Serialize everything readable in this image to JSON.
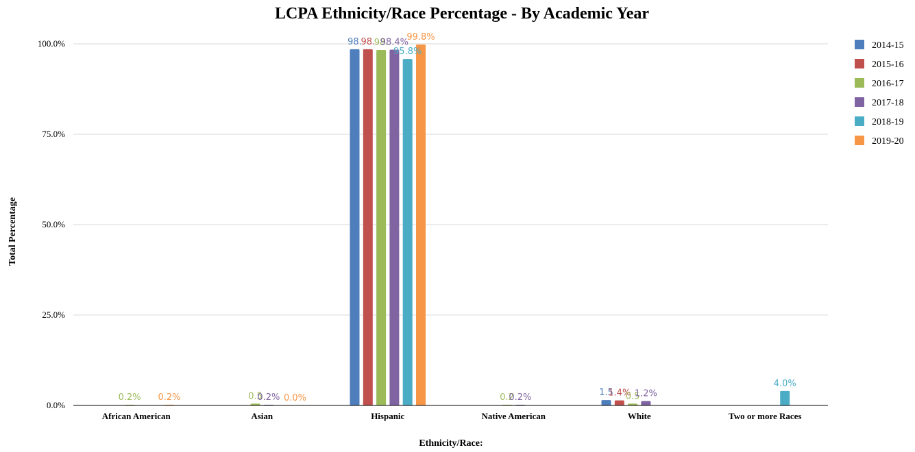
{
  "chart_data": {
    "type": "bar",
    "title": "LCPA Ethnicity/Race Percentage - By Academic Year",
    "xlabel": "Ethnicity/Race:",
    "ylabel": "Total Percentage",
    "ylim": [
      0,
      100
    ],
    "yticks": [
      "0.0%",
      "25.0%",
      "50.0%",
      "75.0%",
      "100.0%"
    ],
    "ytick_values": [
      0,
      25,
      50,
      75,
      100
    ],
    "grid": true,
    "legend_position": "right",
    "categories": [
      "African American",
      "Asian",
      "Hispanic",
      "Native American",
      "White",
      "Two or more Races"
    ],
    "series": [
      {
        "name": "2014-15",
        "color": "#4e7ebc",
        "values": [
          null,
          null,
          98.5,
          null,
          1.5,
          null
        ],
        "labels": [
          "",
          "",
          "98.",
          "",
          "1.5",
          ""
        ]
      },
      {
        "name": "2015-16",
        "color": "#c0504d",
        "values": [
          null,
          null,
          98.5,
          null,
          1.4,
          null
        ],
        "labels": [
          "",
          "",
          "98.",
          "",
          "1.4%",
          ""
        ]
      },
      {
        "name": "2016-17",
        "color": "#9bbb59",
        "values": [
          0.2,
          0.5,
          98.3,
          0.2,
          0.5,
          null
        ],
        "labels": [
          "0.2%",
          "0.5",
          "98.",
          "0.2",
          "0.5",
          ""
        ]
      },
      {
        "name": "2017-18",
        "color": "#8064a2",
        "values": [
          null,
          0.2,
          98.4,
          0.2,
          1.2,
          null
        ],
        "labels": [
          "",
          "0.2%",
          "98.4%",
          "0.2%",
          "1.2%",
          ""
        ]
      },
      {
        "name": "2018-19",
        "color": "#4bacc6",
        "values": [
          null,
          null,
          95.8,
          null,
          null,
          4.0
        ],
        "labels": [
          "",
          "",
          "95.8%",
          "",
          "",
          "4.0%"
        ]
      },
      {
        "name": "2019-20",
        "color": "#f79646",
        "values": [
          0.2,
          0.0,
          99.8,
          null,
          null,
          null
        ],
        "labels": [
          "0.2%",
          "0.0%",
          "99.8%",
          "",
          "",
          ""
        ]
      }
    ]
  }
}
